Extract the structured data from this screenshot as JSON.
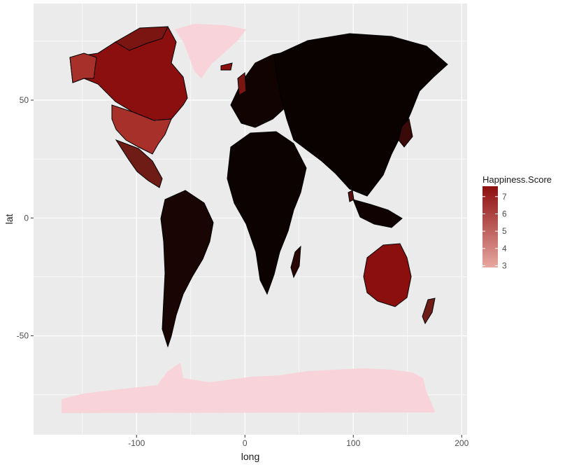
{
  "chart_data": {
    "type": "map",
    "title": "",
    "xlabel": "long",
    "ylabel": "lat",
    "xlim": [
      -195,
      205
    ],
    "ylim": [
      -92,
      91
    ],
    "x_ticks": [
      -100,
      0,
      100,
      200
    ],
    "y_ticks": [
      -50,
      0,
      50
    ],
    "x_tick_labels": [
      "-100",
      "0",
      "100",
      "200"
    ],
    "y_tick_labels": [
      "-50",
      "0",
      "50"
    ],
    "grid": true,
    "legend": {
      "title": "Happiness.Score",
      "placement": "right",
      "min": 2.9,
      "max": 7.6,
      "breaks": [
        7,
        6,
        5,
        4,
        3
      ],
      "break_labels": [
        "7",
        "6",
        "5",
        "4",
        "3"
      ],
      "color_high": "#8b0f0f",
      "color_low": "#e8a7a0"
    },
    "colors": {
      "panel_background": "#ebebeb",
      "grid_major": "#ffffff",
      "missing_country": "#f8d4da",
      "border": "#000000",
      "axis_text": "#4d4d4d",
      "axis_title": "#1a1a1a"
    }
  }
}
